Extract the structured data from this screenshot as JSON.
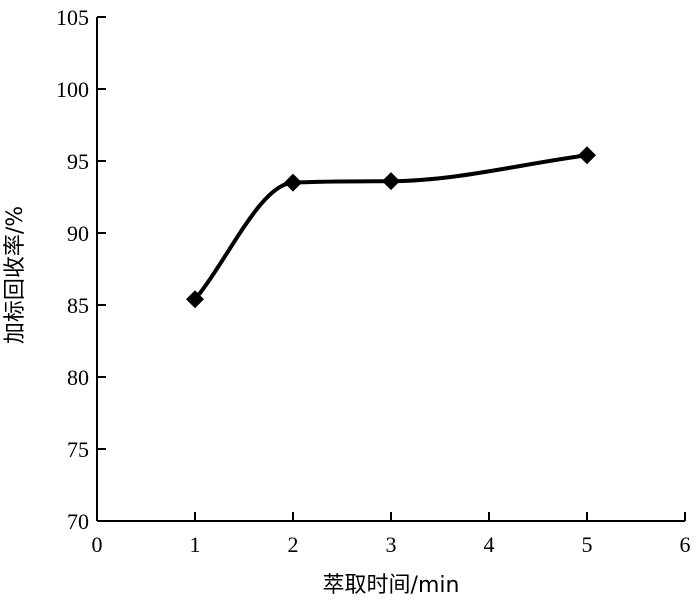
{
  "chart_data": {
    "type": "line",
    "title": "",
    "xlabel": "萃取时间/min",
    "ylabel": "加标回收率/%",
    "xlim": [
      0,
      6
    ],
    "ylim": [
      70,
      105
    ],
    "xticks": [
      0,
      1,
      2,
      3,
      4,
      5,
      6
    ],
    "yticks": [
      70,
      75,
      80,
      85,
      90,
      95,
      100,
      105
    ],
    "grid": false,
    "smooth": true,
    "marker": "diamond",
    "line_color": "#000000",
    "series": [
      {
        "x": [
          1,
          2,
          3,
          5
        ],
        "y": [
          85.4,
          93.5,
          93.6,
          95.4
        ]
      }
    ]
  }
}
